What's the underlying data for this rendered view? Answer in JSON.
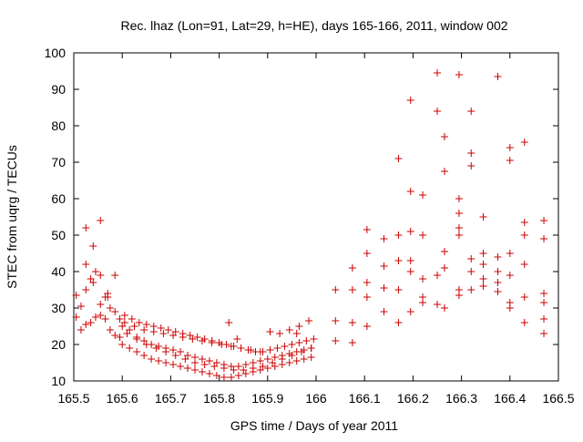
{
  "chart_data": {
    "type": "scatter",
    "title": "Rec. lhaz (Lon=91, Lat=29, h=HE), days 165-166, 2011, window 002",
    "xlabel": "GPS time / Days of year 2011",
    "ylabel": "STEC from uqrg / TECUs",
    "xlim": [
      165.5,
      166.5
    ],
    "ylim": [
      10,
      100
    ],
    "xticks": [
      "165.5",
      "165.6",
      "165.7",
      "165.8",
      "165.9",
      "166",
      "166.1",
      "166.2",
      "166.3",
      "166.4",
      "166.5"
    ],
    "yticks": [
      "10",
      "20",
      "30",
      "40",
      "50",
      "60",
      "70",
      "80",
      "90",
      "100"
    ],
    "grid": false,
    "marker": "plus",
    "color": "#cc0000",
    "x": [
      165.505,
      165.515,
      165.525,
      165.535,
      165.545,
      165.555,
      165.565,
      165.575,
      165.585,
      165.595,
      165.505,
      165.515,
      165.525,
      165.535,
      165.545,
      165.555,
      165.565,
      165.575,
      165.585,
      165.595,
      165.525,
      165.54,
      165.555,
      165.57,
      165.585,
      165.525,
      165.54,
      165.555,
      165.57,
      165.6,
      165.615,
      165.63,
      165.645,
      165.66,
      165.675,
      165.69,
      165.705,
      165.72,
      165.735,
      165.75,
      165.765,
      165.78,
      165.795,
      165.81,
      165.825,
      165.84,
      165.855,
      165.87,
      165.885,
      165.9,
      165.915,
      165.93,
      165.945,
      165.96,
      165.975,
      165.99,
      165.6,
      165.615,
      165.63,
      165.645,
      165.66,
      165.675,
      165.69,
      165.705,
      165.72,
      165.735,
      165.75,
      165.765,
      165.78,
      165.795,
      165.81,
      165.825,
      165.84,
      165.855,
      165.87,
      165.885,
      165.9,
      165.915,
      165.93,
      165.945,
      165.96,
      165.975,
      165.99,
      165.605,
      165.62,
      165.635,
      165.65,
      165.665,
      165.68,
      165.695,
      165.71,
      165.725,
      165.74,
      165.755,
      165.77,
      165.785,
      165.8,
      165.815,
      165.83,
      165.845,
      165.86,
      165.875,
      165.89,
      165.905,
      165.92,
      165.935,
      165.95,
      165.965,
      165.98,
      165.995,
      165.605,
      165.625,
      165.645,
      165.665,
      165.685,
      165.705,
      165.725,
      165.745,
      165.765,
      165.785,
      165.805,
      165.825,
      165.845,
      165.865,
      165.885,
      165.905,
      165.925,
      165.945,
      165.965,
      165.985,
      165.61,
      165.63,
      165.65,
      165.67,
      165.69,
      165.71,
      165.73,
      165.75,
      165.77,
      165.79,
      165.81,
      165.83,
      165.85,
      165.87,
      165.89,
      165.91,
      165.93,
      165.95,
      165.97,
      165.99,
      165.82,
      165.837,
      165.905,
      165.96,
      166.04,
      166.04,
      166.04,
      166.075,
      166.075,
      166.075,
      166.075,
      166.105,
      166.105,
      166.105,
      166.105,
      166.105,
      166.14,
      166.14,
      166.14,
      166.14,
      166.17,
      166.17,
      166.17,
      166.17,
      166.17,
      166.195,
      166.195,
      166.195,
      166.195,
      166.195,
      166.195,
      166.22,
      166.22,
      166.22,
      166.22,
      166.22,
      166.25,
      166.25,
      166.25,
      166.25,
      166.265,
      166.265,
      166.265,
      166.265,
      166.265,
      166.295,
      166.295,
      166.295,
      166.295,
      166.295,
      166.295,
      166.295,
      166.32,
      166.32,
      166.32,
      166.32,
      166.32,
      166.32,
      166.345,
      166.345,
      166.345,
      166.345,
      166.345,
      166.375,
      166.375,
      166.375,
      166.375,
      166.375,
      166.4,
      166.4,
      166.4,
      166.4,
      166.4,
      166.4,
      166.43,
      166.43,
      166.43,
      166.43,
      166.43,
      166.43,
      166.47,
      166.47,
      166.47,
      166.47,
      166.47,
      166.47
    ],
    "y": [
      33.5,
      30.5,
      35.0,
      38.0,
      40.0,
      39.0,
      33.0,
      30.0,
      29.0,
      27.0,
      27.5,
      24.0,
      25.5,
      26.0,
      27.5,
      28.0,
      27.0,
      24.0,
      22.5,
      22.0,
      52.0,
      47.0,
      54.0,
      34.0,
      39.0,
      42.0,
      37.0,
      31.0,
      33.0,
      25.0,
      24.0,
      22.0,
      21.0,
      20.0,
      19.5,
      19.0,
      18.5,
      18.0,
      17.0,
      16.5,
      16.0,
      15.5,
      15.0,
      14.5,
      14.0,
      14.0,
      14.5,
      15.0,
      15.5,
      16.0,
      16.5,
      17.0,
      17.5,
      18.0,
      18.5,
      19.0,
      20.0,
      19.0,
      18.0,
      17.0,
      16.0,
      15.5,
      15.0,
      14.5,
      14.0,
      13.5,
      13.0,
      12.5,
      12.0,
      11.5,
      11.0,
      11.0,
      11.5,
      12.0,
      12.5,
      13.0,
      13.5,
      14.0,
      14.5,
      15.0,
      15.5,
      16.0,
      16.5,
      28.0,
      27.0,
      26.0,
      25.5,
      25.0,
      24.5,
      24.0,
      23.5,
      23.0,
      22.5,
      22.0,
      21.5,
      21.0,
      20.5,
      20.0,
      19.5,
      19.0,
      18.5,
      18.0,
      18.0,
      18.5,
      19.0,
      19.5,
      20.0,
      20.5,
      21.0,
      21.5,
      26.0,
      25.0,
      24.0,
      23.5,
      23.0,
      22.5,
      22.0,
      21.5,
      21.0,
      20.5,
      20.0,
      19.5,
      19.0,
      18.5,
      18.0,
      23.5,
      23.0,
      24.0,
      25.0,
      26.5,
      23.0,
      21.5,
      20.0,
      19.0,
      18.0,
      17.0,
      16.0,
      15.0,
      14.5,
      14.0,
      13.5,
      13.0,
      13.0,
      13.5,
      14.0,
      15.0,
      16.0,
      17.0,
      18.0,
      19.0,
      26.0,
      21.5,
      23.5,
      23.0,
      35.0,
      26.5,
      21.0,
      41.0,
      35.0,
      26.0,
      20.5,
      51.5,
      45.0,
      37.0,
      33.0,
      25.0,
      49.0,
      41.5,
      35.5,
      29.0,
      71.0,
      50.0,
      43.0,
      35.0,
      26.0,
      87.0,
      62.0,
      51.0,
      43.0,
      40.0,
      29.0,
      61.0,
      50.0,
      38.0,
      33.0,
      31.5,
      94.5,
      84.0,
      39.0,
      31.0,
      77.0,
      67.5,
      45.5,
      41.0,
      30.0,
      94.0,
      60.0,
      56.0,
      52.0,
      50.0,
      35.0,
      33.5,
      84.0,
      72.5,
      69.0,
      43.5,
      40.0,
      35.0,
      55.0,
      45.0,
      42.0,
      38.0,
      36.0,
      93.5,
      44.0,
      40.0,
      37.0,
      34.5,
      74.0,
      70.5,
      45.0,
      39.0,
      31.5,
      30.0,
      75.5,
      53.5,
      50.0,
      42.0,
      33.0,
      26.0,
      54.0,
      49.0,
      34.0,
      31.5,
      27.0,
      23.0
    ]
  }
}
